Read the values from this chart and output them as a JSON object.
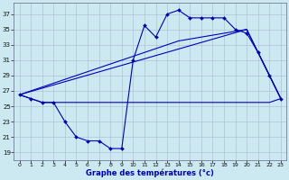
{
  "title": "Graphe des températures (°c)",
  "bg": "#cce8f0",
  "grid_color": "#aabbcc",
  "lc": "#0000bb",
  "yticks": [
    19,
    21,
    23,
    25,
    27,
    29,
    31,
    33,
    35,
    37
  ],
  "xticks": [
    0,
    1,
    2,
    3,
    4,
    5,
    6,
    7,
    8,
    9,
    10,
    11,
    12,
    13,
    14,
    15,
    16,
    17,
    18,
    19,
    20,
    21,
    22,
    23
  ],
  "ylim": [
    18.0,
    38.5
  ],
  "xlim": [
    -0.5,
    23.5
  ],
  "line_flat": {
    "x": [
      0,
      1,
      2,
      3,
      4,
      5,
      6,
      7,
      8,
      9,
      10,
      11,
      12,
      13,
      14,
      15,
      16,
      17,
      18,
      19,
      20,
      21,
      22,
      23
    ],
    "y": [
      26.5,
      26.0,
      25.5,
      25.5,
      25.5,
      25.5,
      25.5,
      25.5,
      25.5,
      25.5,
      25.5,
      25.5,
      25.5,
      25.5,
      25.5,
      25.5,
      25.5,
      25.5,
      25.5,
      25.5,
      25.5,
      25.5,
      25.5,
      26.0
    ]
  },
  "line_diag_low": {
    "x": [
      0,
      20,
      23
    ],
    "y": [
      26.5,
      35.0,
      26.0
    ]
  },
  "line_diag_high": {
    "x": [
      0,
      14,
      20,
      23
    ],
    "y": [
      26.5,
      33.5,
      35.0,
      26.0
    ]
  },
  "line_main": {
    "x": [
      0,
      1,
      2,
      3,
      4,
      5,
      6,
      7,
      8,
      9,
      10,
      11,
      12,
      13,
      14,
      15,
      16,
      17,
      18,
      19,
      20,
      21,
      22,
      23
    ],
    "y": [
      26.5,
      26.0,
      25.5,
      25.5,
      23.0,
      21.0,
      20.5,
      20.5,
      19.5,
      19.5,
      31.0,
      35.5,
      34.0,
      37.0,
      37.5,
      36.5,
      36.5,
      36.5,
      36.5,
      35.0,
      34.5,
      32.0,
      29.0,
      26.0
    ]
  }
}
